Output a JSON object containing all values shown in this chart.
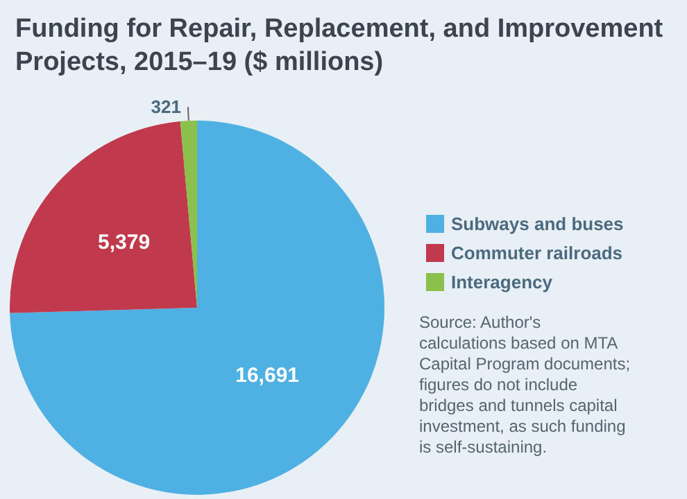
{
  "chart_data": {
    "type": "pie",
    "title": "Funding for Repair, Replacement, and Improvement Projects, 2015–19 ($ millions)",
    "categories": [
      "Subways and buses",
      "Commuter railroads",
      "Interagency"
    ],
    "values": [
      16691,
      5379,
      321
    ],
    "colors": [
      "#4fb0e3",
      "#c0394d",
      "#8bc04a"
    ],
    "value_labels": [
      "16,691",
      "5,379",
      "321"
    ],
    "legend": "right",
    "annotations": [
      "Source: Author's calculations based on MTA Capital Program documents; figures do not include bridges and tunnels capital investment, as such funding is self-sustaining."
    ]
  }
}
